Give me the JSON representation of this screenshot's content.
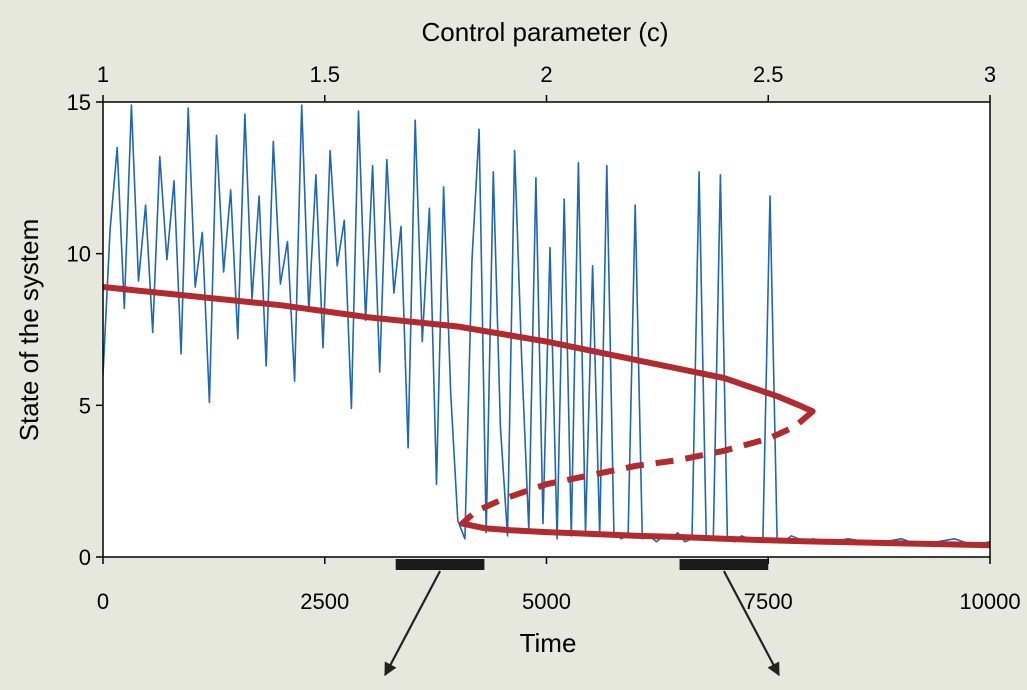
{
  "chart_data": {
    "type": "line",
    "title": "",
    "xlabel": "Time",
    "ylabel": "State of the system",
    "top_axis_label": "Control parameter (c)",
    "xlim": [
      0,
      10000
    ],
    "ylim": [
      0,
      15
    ],
    "top_axis_lim": [
      1,
      3
    ],
    "x_ticks": [
      "0",
      "2500",
      "5000",
      "7500",
      "10000"
    ],
    "x_tick_values": [
      0,
      2500,
      5000,
      7500,
      10000
    ],
    "y_ticks": [
      "0",
      "5",
      "10",
      "15"
    ],
    "y_tick_values": [
      0,
      5,
      10,
      15
    ],
    "top_ticks": [
      "1",
      "1.5",
      "2",
      "2.5",
      "3"
    ],
    "top_tick_values": [
      1,
      1.5,
      2,
      2.5,
      3
    ],
    "grid": false,
    "colors": {
      "noise_series": "#1f66b3",
      "equilibrium": "#b02a2e",
      "bars": "#1a1a1a",
      "background": "#e6e7dd"
    },
    "series": [
      {
        "style": "noisy-line",
        "x": [
          0,
          80,
          160,
          240,
          320,
          400,
          480,
          560,
          640,
          720,
          800,
          880,
          960,
          1040,
          1120,
          1200,
          1280,
          1360,
          1440,
          1520,
          1600,
          1680,
          1760,
          1840,
          1920,
          2000,
          2080,
          2160,
          2240,
          2320,
          2400,
          2480,
          2560,
          2640,
          2720,
          2800,
          2880,
          2960,
          3040,
          3120,
          3200,
          3280,
          3360,
          3440,
          3520,
          3600,
          3680,
          3760,
          3840,
          3920,
          4000,
          4080,
          4160,
          4240,
          4320,
          4400,
          4480,
          4560,
          4640,
          4720,
          4800,
          4880,
          4960,
          5040,
          5120,
          5200,
          5280,
          5360,
          5440,
          5520,
          5600,
          5680,
          5760,
          5840,
          5920,
          6000,
          6080,
          6160,
          6240,
          6320,
          6400,
          6480,
          6560,
          6640,
          6720,
          6800,
          6880,
          6960,
          7040,
          7120,
          7200,
          7280,
          7360,
          7440,
          7520,
          7600,
          7680,
          7760,
          7840,
          7920,
          8000,
          8200,
          8400,
          8600,
          8800,
          9000,
          9200,
          9400,
          9600,
          9800,
          10000
        ],
        "y": [
          6.0,
          10.8,
          13.5,
          8.2,
          14.9,
          9.1,
          11.6,
          7.4,
          13.2,
          9.8,
          12.4,
          6.7,
          14.8,
          8.9,
          10.7,
          5.1,
          13.9,
          9.4,
          12.1,
          7.2,
          14.6,
          8.5,
          11.9,
          6.3,
          13.7,
          9.0,
          10.4,
          5.8,
          14.9,
          8.1,
          12.6,
          6.9,
          13.4,
          9.6,
          11.1,
          4.9,
          14.7,
          7.8,
          12.9,
          6.1,
          13.1,
          8.7,
          10.9,
          3.6,
          14.4,
          7.1,
          11.5,
          2.4,
          12.2,
          5.4,
          1.2,
          0.6,
          9.8,
          14.1,
          0.8,
          12.7,
          4.3,
          0.7,
          13.4,
          6.5,
          0.9,
          12.5,
          1.1,
          10.2,
          0.6,
          11.8,
          0.7,
          13.0,
          0.8,
          9.6,
          0.7,
          12.9,
          0.8,
          0.6,
          0.7,
          11.6,
          0.6,
          0.7,
          0.5,
          0.7,
          0.6,
          0.8,
          0.5,
          0.6,
          12.7,
          0.7,
          0.6,
          12.6,
          0.6,
          0.5,
          0.7,
          0.6,
          0.5,
          0.6,
          11.9,
          0.6,
          0.5,
          0.7,
          0.6,
          0.5,
          0.6,
          0.5,
          0.6,
          0.5,
          0.5,
          0.6,
          0.4,
          0.5,
          0.6,
          0.4,
          0.5
        ]
      },
      {
        "style": "solid",
        "x": [
          0,
          1000,
          2000,
          3000,
          4000,
          5000,
          5500,
          6000,
          6500,
          7000,
          7300,
          7600,
          7850,
          8000
        ],
        "y": [
          8.9,
          8.6,
          8.3,
          7.9,
          7.6,
          7.1,
          6.8,
          6.5,
          6.2,
          5.9,
          5.6,
          5.3,
          5.0,
          4.8
        ]
      },
      {
        "style": "dashed",
        "x": [
          8000,
          7800,
          7500,
          7000,
          6500,
          6000,
          5500,
          5000,
          4500,
          4200,
          4050
        ],
        "y": [
          4.8,
          4.3,
          3.9,
          3.5,
          3.2,
          3.0,
          2.7,
          2.4,
          1.9,
          1.5,
          1.1
        ]
      },
      {
        "style": "solid",
        "x": [
          4050,
          4300,
          4600,
          5000,
          5500,
          6000,
          6500,
          7000,
          7500,
          8000,
          8500,
          9000,
          9500,
          10000
        ],
        "y": [
          1.1,
          0.95,
          0.88,
          0.82,
          0.76,
          0.7,
          0.66,
          0.6,
          0.55,
          0.51,
          0.48,
          0.45,
          0.42,
          0.39
        ]
      }
    ],
    "bars": [
      {
        "x": [
          3300,
          4300
        ]
      },
      {
        "x": [
          6500,
          7500
        ]
      }
    ]
  }
}
